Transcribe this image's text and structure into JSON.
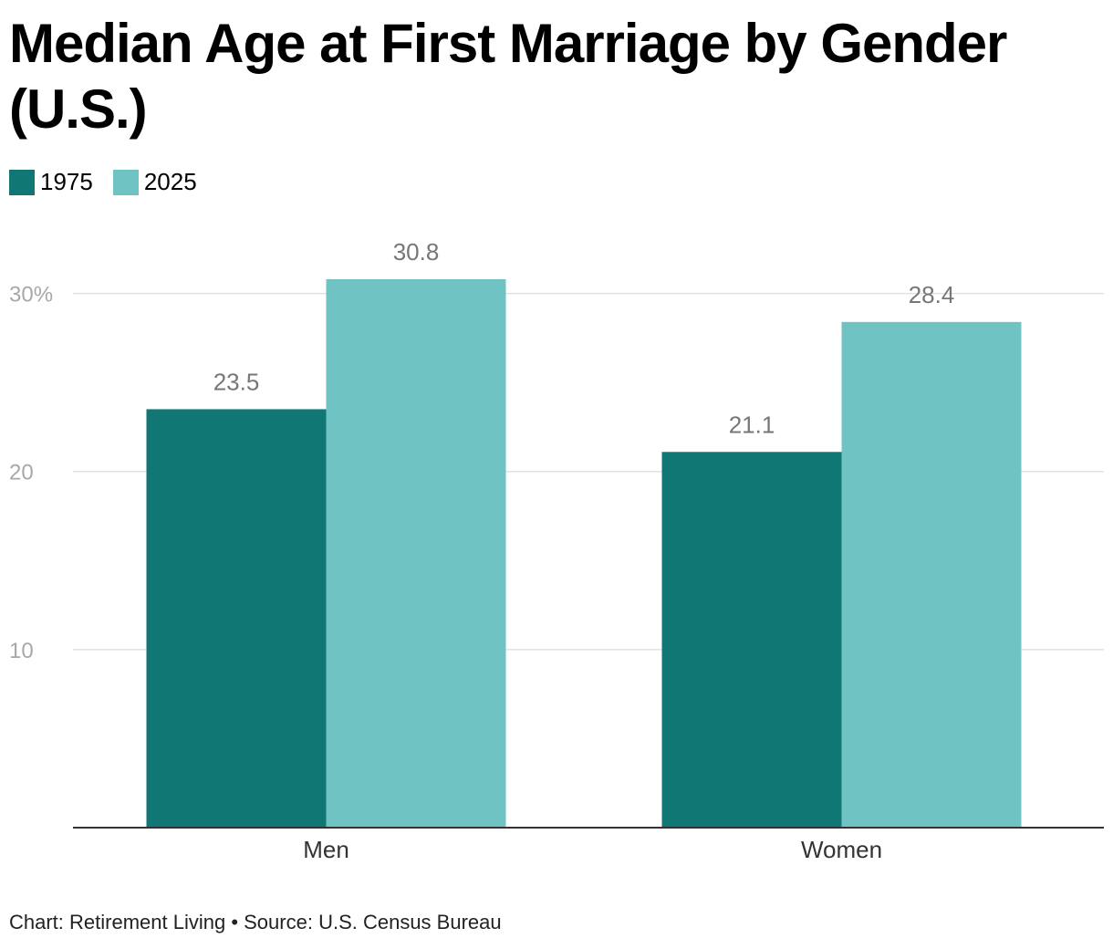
{
  "chart_data": {
    "type": "bar",
    "title": "Median Age at First Marriage by Gender (U.S.)",
    "categories": [
      "Men",
      "Women"
    ],
    "series": [
      {
        "name": "1975",
        "values": [
          23.5,
          21.1
        ],
        "color": "#107774"
      },
      {
        "name": "2025",
        "values": [
          30.8,
          28.4
        ],
        "color": "#6fc4c3"
      }
    ],
    "ylim": [
      0,
      30.8
    ],
    "yticks": [
      10,
      20,
      30
    ],
    "ytick_labels": [
      "10",
      "20",
      "30%"
    ],
    "grid": true,
    "legend_position": "top-left"
  },
  "footer": "Chart: Retirement Living • Source: U.S. Census Bureau"
}
